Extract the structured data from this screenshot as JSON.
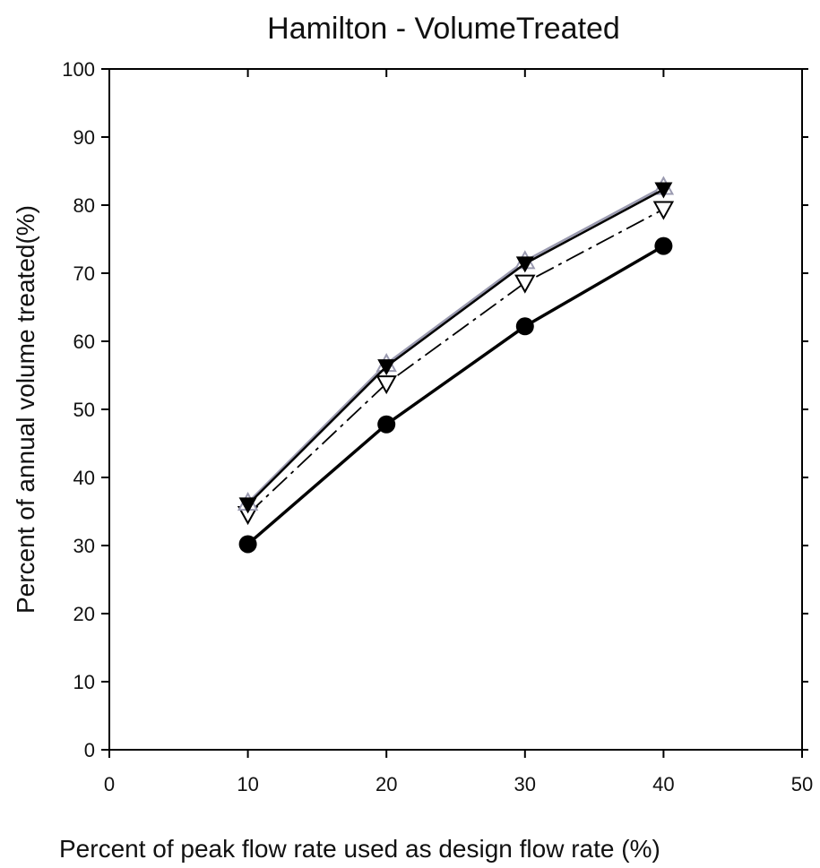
{
  "chart_data": {
    "type": "line",
    "title": "Hamilton - VolumeTreated",
    "xlabel": "Percent of peak flow rate used as design flow rate (%)",
    "ylabel": "Percent of annual volume treated(%)",
    "xlim": [
      0,
      50
    ],
    "ylim": [
      0,
      100
    ],
    "x_ticks": [
      0,
      10,
      20,
      30,
      40,
      50
    ],
    "y_ticks": [
      0,
      10,
      20,
      30,
      40,
      50,
      60,
      70,
      80,
      90,
      100
    ],
    "grid": false,
    "legend": "none",
    "x": [
      10,
      20,
      30,
      40
    ],
    "series": [
      {
        "values": [
          30.2,
          47.8,
          62.2,
          74.0
        ],
        "marker": "filled-circle",
        "line": "solid-thick",
        "color": "#000000"
      },
      {
        "values": [
          34.6,
          53.8,
          68.6,
          79.4
        ],
        "marker": "open-triangle-down",
        "line": "dash-dot",
        "color": "#000000"
      },
      {
        "values": [
          36.3,
          56.7,
          71.8,
          82.7
        ],
        "marker": "open-triangle-up",
        "line": "solid",
        "color": "#9a9ab0"
      },
      {
        "values": [
          36.0,
          56.3,
          71.4,
          82.3
        ],
        "marker": "filled-triangle-down",
        "line": "solid",
        "color": "#000000"
      }
    ]
  }
}
